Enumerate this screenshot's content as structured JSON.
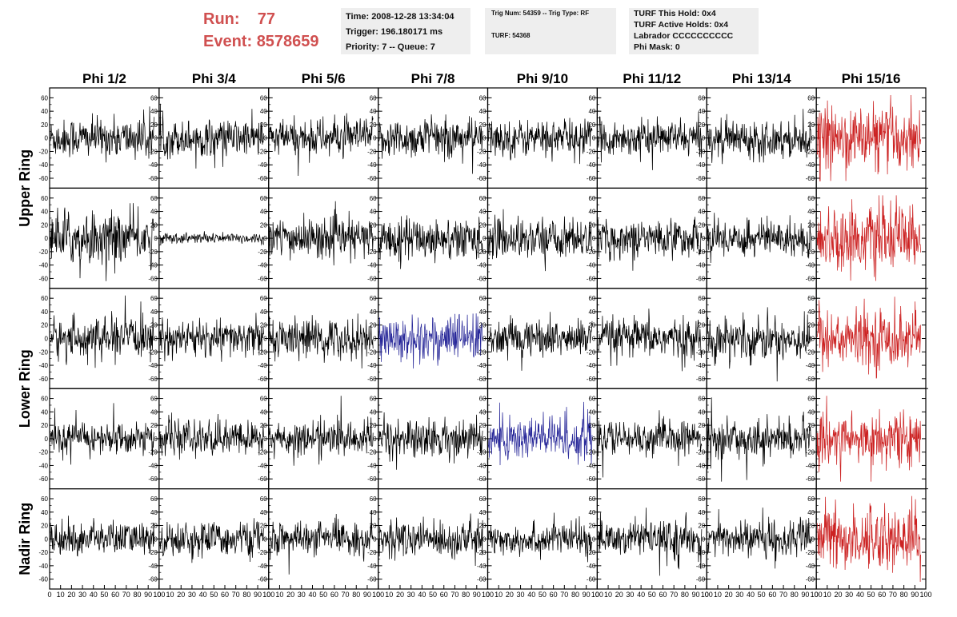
{
  "header": {
    "run_label": "Run:",
    "run_value": "77",
    "event_label": "Event:",
    "event_value": "8578659",
    "info_box_1": [
      "Time: 2008-12-28 13:34:04",
      "Trigger: 196.180171 ms",
      "Priority: 7 -- Queue: 7"
    ],
    "info_box_2": [
      "Trig Num: 54359 -- Trig Type: RF",
      "TURF: 54368"
    ],
    "info_box_3": [
      "TURF This Hold: 0x4",
      "TURF Active Holds: 0x4",
      "Labrador CCCCCCCCCC",
      "Phi Mask: 0"
    ]
  },
  "colors": {
    "header_accent": "#d05050",
    "trace_default": "#000000",
    "trace_red": "#cc2222",
    "trace_blue": "#2a2a9a"
  },
  "chart_data": {
    "type": "line",
    "columns": [
      "Phi 1/2",
      "Phi 3/4",
      "Phi 5/6",
      "Phi 7/8",
      "Phi 9/10",
      "Phi 11/12",
      "Phi 13/14",
      "Phi 15/16"
    ],
    "ring_labels": [
      {
        "label": "Upper Ring",
        "rows": [
          0,
          1
        ]
      },
      {
        "label": "Lower Ring",
        "rows": [
          2,
          3
        ]
      },
      {
        "label": "Nadir Ring",
        "rows": [
          4
        ]
      }
    ],
    "ylim": [
      -70,
      70
    ],
    "y_ticks": [
      -60,
      -40,
      -20,
      0,
      20,
      40,
      60
    ],
    "y_tick_labels": [
      "-60",
      "-40",
      "-20",
      "0",
      "20",
      "40",
      "60"
    ],
    "xlim": [
      0,
      100
    ],
    "x_ticks": [
      0,
      10,
      20,
      30,
      40,
      50,
      60,
      70,
      80,
      90,
      100
    ],
    "x_tick_labels": [
      "0",
      "10",
      "20",
      "30",
      "40",
      "50",
      "60",
      "70",
      "80",
      "90",
      "100"
    ],
    "n_samples": 260,
    "x_max_sample": 96,
    "amplitudes": [
      [
        15,
        14,
        14,
        15,
        14,
        13,
        14,
        24
      ],
      [
        20,
        4,
        15,
        16,
        15,
        14,
        14,
        24
      ],
      [
        15,
        14,
        15,
        18,
        14,
        15,
        16,
        22
      ],
      [
        12,
        13,
        13,
        15,
        18,
        13,
        14,
        20
      ],
      [
        13,
        13,
        12,
        14,
        12,
        13,
        14,
        24
      ]
    ],
    "trace_colors": [
      [
        "default",
        "default",
        "default",
        "default",
        "default",
        "default",
        "default",
        "red"
      ],
      [
        "default",
        "default",
        "default",
        "default",
        "default",
        "default",
        "default",
        "red"
      ],
      [
        "default",
        "default",
        "default",
        "blue",
        "default",
        "default",
        "default",
        "red"
      ],
      [
        "default",
        "default",
        "default",
        "default",
        "blue",
        "default",
        "default",
        "red"
      ],
      [
        "default",
        "default",
        "default",
        "default",
        "default",
        "default",
        "default",
        "red"
      ]
    ]
  }
}
